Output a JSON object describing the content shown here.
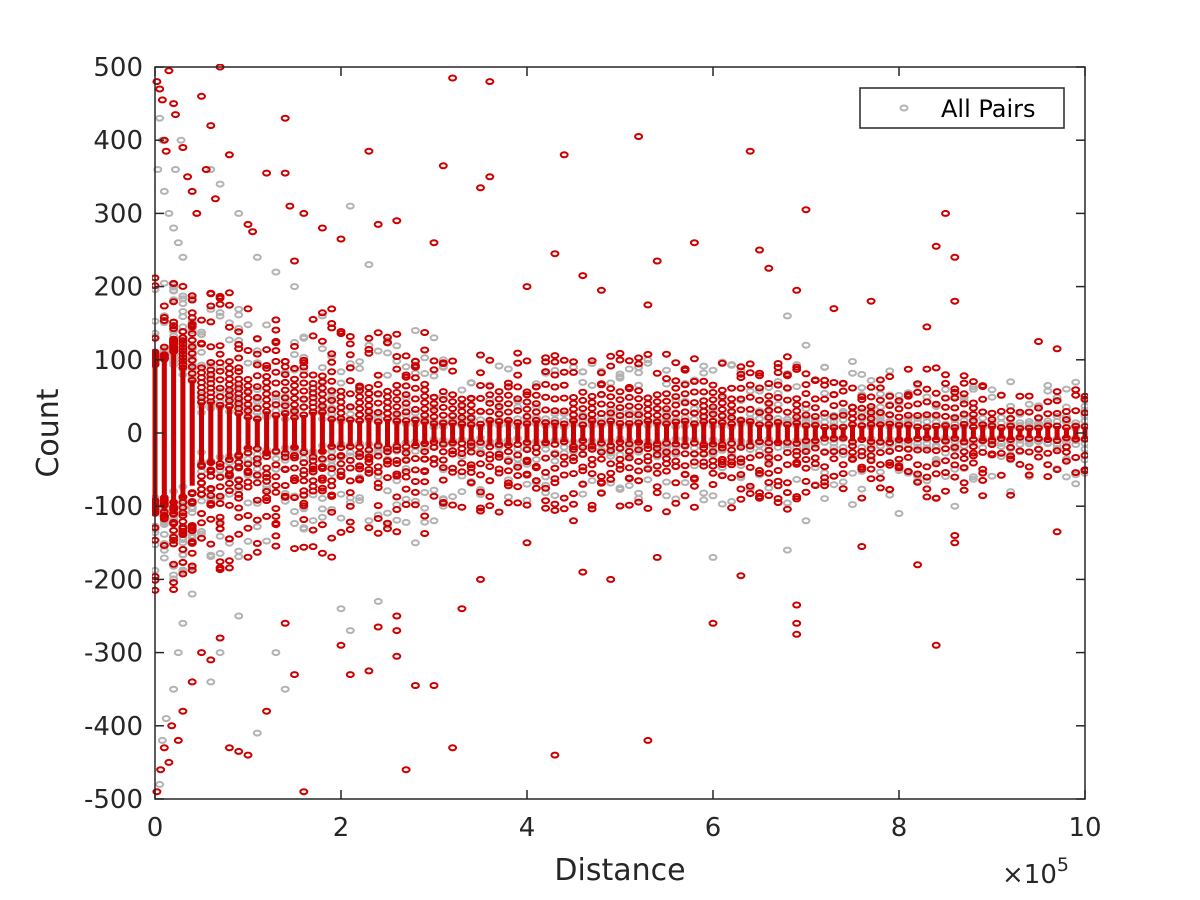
{
  "chart_data": {
    "type": "scatter",
    "title": "",
    "xlabel": "Distance",
    "ylabel": "Count",
    "x_exponent_label": {
      "prefix": "×10",
      "power": "5"
    },
    "xlim": [
      0,
      1000000
    ],
    "ylim": [
      -500,
      500
    ],
    "x_ticks": [
      0,
      200000,
      400000,
      600000,
      800000,
      1000000
    ],
    "x_tick_labels": [
      "0",
      "2",
      "4",
      "6",
      "8",
      "10"
    ],
    "y_ticks": [
      -500,
      -400,
      -300,
      -200,
      -100,
      0,
      100,
      200,
      300,
      400,
      500
    ],
    "y_tick_labels": [
      "-500",
      "-400",
      "-300",
      "-200",
      "-100",
      "0",
      "100",
      "200",
      "300",
      "400",
      "500"
    ],
    "grid": false,
    "box": true,
    "legend": {
      "position": "top-right",
      "entries": [
        "All Pairs"
      ]
    },
    "series": [
      {
        "name": "All Pairs",
        "color": "#b3b3b3",
        "marker": "circle-open",
        "band_x_step": 10000,
        "bands": [
          {
            "x_start": 0,
            "x_end": 40000,
            "inner": 88,
            "mid": 130,
            "outer": 210,
            "mid_count": 10,
            "outer_count": 8
          },
          {
            "x_start": 50000,
            "x_end": 90000,
            "inner": 32,
            "mid": 50,
            "outer": 170,
            "mid_count": 4,
            "outer_count": 6
          },
          {
            "x_start": 100000,
            "x_end": 190000,
            "inner": 22,
            "mid": 40,
            "outer": 150,
            "mid_count": 3,
            "outer_count": 5
          },
          {
            "x_start": 200000,
            "x_end": 290000,
            "inner": 15,
            "mid": 30,
            "outer": 130,
            "mid_count": 3,
            "outer_count": 4
          },
          {
            "x_start": 300000,
            "x_end": 790000,
            "inner": 10,
            "mid": 25,
            "outer": 100,
            "mid_count": 3,
            "outer_count": 3
          },
          {
            "x_start": 800000,
            "x_end": 1000000,
            "inner": 8,
            "mid": 20,
            "outer": 70,
            "mid_count": 3,
            "outer_count": 2
          }
        ],
        "points": [
          [
            5000,
            430
          ],
          [
            8000,
            400
          ],
          [
            3000,
            360
          ],
          [
            10000,
            330
          ],
          [
            15000,
            300
          ],
          [
            20000,
            280
          ],
          [
            25000,
            260
          ],
          [
            30000,
            240
          ],
          [
            22000,
            360
          ],
          [
            28000,
            400
          ],
          [
            60000,
            360
          ],
          [
            70000,
            340
          ],
          [
            80000,
            380
          ],
          [
            90000,
            300
          ],
          [
            110000,
            240
          ],
          [
            130000,
            220
          ],
          [
            150000,
            200
          ],
          [
            180000,
            160
          ],
          [
            210000,
            310
          ],
          [
            230000,
            230
          ],
          [
            280000,
            140
          ],
          [
            300000,
            130
          ],
          [
            310000,
            100
          ],
          [
            450000,
            90
          ],
          [
            530000,
            100
          ],
          [
            680000,
            160
          ],
          [
            700000,
            120
          ],
          [
            720000,
            90
          ],
          [
            760000,
            80
          ],
          [
            920000,
            70
          ],
          [
            960000,
            65
          ],
          [
            980000,
            60
          ],
          [
            5000,
            -480
          ],
          [
            8000,
            -420
          ],
          [
            12000,
            -390
          ],
          [
            20000,
            -350
          ],
          [
            25000,
            -300
          ],
          [
            30000,
            -260
          ],
          [
            40000,
            -220
          ],
          [
            60000,
            -340
          ],
          [
            70000,
            -300
          ],
          [
            90000,
            -250
          ],
          [
            110000,
            -410
          ],
          [
            130000,
            -300
          ],
          [
            140000,
            -350
          ],
          [
            200000,
            -240
          ],
          [
            210000,
            -270
          ],
          [
            240000,
            -230
          ],
          [
            280000,
            -150
          ],
          [
            300000,
            -120
          ],
          [
            310000,
            -100
          ],
          [
            330000,
            -80
          ],
          [
            400000,
            -70
          ],
          [
            420000,
            -60
          ],
          [
            600000,
            -170
          ],
          [
            630000,
            -60
          ],
          [
            680000,
            -160
          ],
          [
            700000,
            -120
          ],
          [
            800000,
            -110
          ],
          [
            860000,
            -100
          ],
          [
            920000,
            -80
          ],
          [
            980000,
            -60
          ],
          [
            1000000,
            -55
          ],
          [
            1000000,
            45
          ]
        ]
      },
      {
        "name": "",
        "color": "#cc0000",
        "marker": "circle-open",
        "band_x_step": 10000,
        "bands": [
          {
            "x_start": 0,
            "x_end": 40000,
            "inner": 95,
            "mid": 140,
            "outer": 220,
            "mid_count": 9,
            "outer_count": 7
          },
          {
            "x_start": 50000,
            "x_end": 90000,
            "inner": 35,
            "mid": 120,
            "outer": 200,
            "mid_count": 8,
            "outer_count": 6
          },
          {
            "x_start": 100000,
            "x_end": 190000,
            "inner": 25,
            "mid": 110,
            "outer": 170,
            "mid_count": 7,
            "outer_count": 4
          },
          {
            "x_start": 200000,
            "x_end": 290000,
            "inner": 18,
            "mid": 90,
            "outer": 140,
            "mid_count": 6,
            "outer_count": 3
          },
          {
            "x_start": 300000,
            "x_end": 690000,
            "inner": 14,
            "mid": 70,
            "outer": 110,
            "mid_count": 5,
            "outer_count": 2
          },
          {
            "x_start": 700000,
            "x_end": 890000,
            "inner": 10,
            "mid": 55,
            "outer": 90,
            "mid_count": 4,
            "outer_count": 2
          },
          {
            "x_start": 900000,
            "x_end": 1000000,
            "inner": 8,
            "mid": 45,
            "outer": 60,
            "mid_count": 3,
            "outer_count": 1
          }
        ],
        "points": [
          [
            2000,
            480
          ],
          [
            5000,
            470
          ],
          [
            8000,
            455
          ],
          [
            15000,
            495
          ],
          [
            20000,
            450
          ],
          [
            22000,
            435
          ],
          [
            10000,
            400
          ],
          [
            12000,
            385
          ],
          [
            30000,
            390
          ],
          [
            35000,
            350
          ],
          [
            40000,
            330
          ],
          [
            45000,
            300
          ],
          [
            50000,
            460
          ],
          [
            60000,
            420
          ],
          [
            70000,
            500
          ],
          [
            80000,
            380
          ],
          [
            55000,
            360
          ],
          [
            65000,
            320
          ],
          [
            100000,
            285
          ],
          [
            105000,
            275
          ],
          [
            120000,
            355
          ],
          [
            140000,
            355
          ],
          [
            145000,
            310
          ],
          [
            150000,
            235
          ],
          [
            160000,
            300
          ],
          [
            180000,
            280
          ],
          [
            200000,
            265
          ],
          [
            230000,
            385
          ],
          [
            240000,
            285
          ],
          [
            260000,
            290
          ],
          [
            140000,
            430
          ],
          [
            300000,
            260
          ],
          [
            310000,
            365
          ],
          [
            320000,
            485
          ],
          [
            350000,
            335
          ],
          [
            360000,
            480
          ],
          [
            360000,
            350
          ],
          [
            400000,
            200
          ],
          [
            430000,
            245
          ],
          [
            440000,
            380
          ],
          [
            460000,
            215
          ],
          [
            480000,
            195
          ],
          [
            520000,
            405
          ],
          [
            530000,
            175
          ],
          [
            540000,
            235
          ],
          [
            580000,
            260
          ],
          [
            640000,
            385
          ],
          [
            650000,
            250
          ],
          [
            660000,
            225
          ],
          [
            690000,
            195
          ],
          [
            700000,
            305
          ],
          [
            730000,
            170
          ],
          [
            770000,
            180
          ],
          [
            830000,
            145
          ],
          [
            840000,
            255
          ],
          [
            850000,
            300
          ],
          [
            860000,
            240
          ],
          [
            860000,
            180
          ],
          [
            950000,
            125
          ],
          [
            970000,
            115
          ],
          [
            2000,
            -490
          ],
          [
            6000,
            -460
          ],
          [
            10000,
            -430
          ],
          [
            15000,
            -450
          ],
          [
            18000,
            -400
          ],
          [
            25000,
            -420
          ],
          [
            30000,
            -380
          ],
          [
            40000,
            -340
          ],
          [
            50000,
            -300
          ],
          [
            60000,
            -310
          ],
          [
            70000,
            -280
          ],
          [
            80000,
            -430
          ],
          [
            90000,
            -435
          ],
          [
            100000,
            -440
          ],
          [
            120000,
            -380
          ],
          [
            140000,
            -260
          ],
          [
            150000,
            -330
          ],
          [
            160000,
            -490
          ],
          [
            200000,
            -290
          ],
          [
            210000,
            -330
          ],
          [
            230000,
            -325
          ],
          [
            240000,
            -265
          ],
          [
            260000,
            -250
          ],
          [
            260000,
            -270
          ],
          [
            260000,
            -305
          ],
          [
            270000,
            -460
          ],
          [
            280000,
            -345
          ],
          [
            300000,
            -345
          ],
          [
            320000,
            -430
          ],
          [
            330000,
            -240
          ],
          [
            350000,
            -200
          ],
          [
            400000,
            -150
          ],
          [
            430000,
            -440
          ],
          [
            450000,
            -120
          ],
          [
            460000,
            -190
          ],
          [
            490000,
            -200
          ],
          [
            530000,
            -420
          ],
          [
            540000,
            -170
          ],
          [
            600000,
            -260
          ],
          [
            630000,
            -195
          ],
          [
            690000,
            -235
          ],
          [
            690000,
            -260
          ],
          [
            690000,
            -275
          ],
          [
            760000,
            -155
          ],
          [
            820000,
            -180
          ],
          [
            840000,
            -290
          ],
          [
            860000,
            -150
          ],
          [
            860000,
            -140
          ],
          [
            920000,
            -85
          ],
          [
            970000,
            -135
          ]
        ]
      }
    ]
  }
}
